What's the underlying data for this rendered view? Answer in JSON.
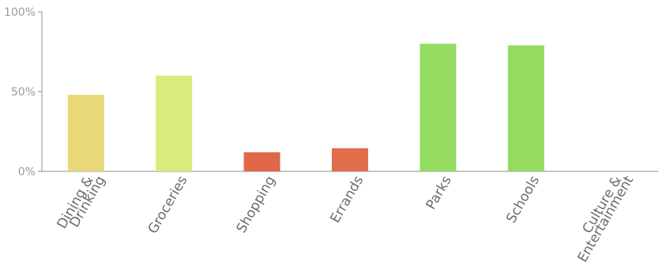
{
  "chart_data": {
    "type": "bar",
    "title": "",
    "xlabel": "",
    "ylabel": "",
    "ylim": [
      0,
      100
    ],
    "y_ticks": [
      "0%",
      "50%",
      "100%"
    ],
    "grid": false,
    "categories": [
      {
        "lines": [
          "Dining &",
          "Drinking"
        ],
        "value": 48,
        "color": "#e8d878"
      },
      {
        "lines": [
          "Groceries"
        ],
        "value": 60,
        "color": "#dbea7c"
      },
      {
        "lines": [
          "Shopping"
        ],
        "value": 12,
        "color": "#e06748"
      },
      {
        "lines": [
          "Errands"
        ],
        "value": 14.5,
        "color": "#e06d4b"
      },
      {
        "lines": [
          "Parks"
        ],
        "value": 80,
        "color": "#93dc61"
      },
      {
        "lines": [
          "Schools"
        ],
        "value": 79,
        "color": "#93dc61"
      },
      {
        "lines": [
          "Culture &",
          "Entertainment"
        ],
        "value": 0,
        "color": "#93dc61"
      }
    ]
  }
}
